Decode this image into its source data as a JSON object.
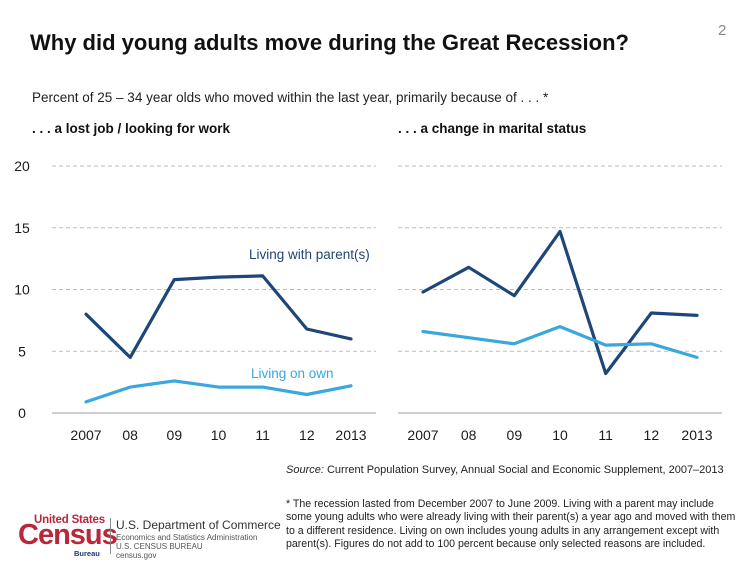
{
  "page_number": "2",
  "title": "Why did young adults move during the Great Recession?",
  "subtitle": "Percent of 25 – 34 year olds who moved within the last year, primarily because of . . . *",
  "source": {
    "label": "Source:",
    "text": "Current Population Survey, Annual Social and Economic Supplement, 2007–2013"
  },
  "footnote": "* The recession lasted from December 2007 to June 2009. Living with a parent may include some young adults who were already living with their parent(s) a year ago and moved with them to a different residence. Living on own includes young adults in any arrangement except with parent(s). Figures do not add to 100 percent because only selected reasons are included.",
  "logo": {
    "united_states": "United States",
    "census": "Census",
    "bureau": "Bureau"
  },
  "department": {
    "name": "U.S. Department of Commerce",
    "line1": "Economics and Statistics Administration",
    "line2": "U.S. CENSUS BUREAU",
    "line3": "census.gov"
  },
  "colors": {
    "parents": "#1f4678",
    "own": "#3aa7de",
    "grid": "#bdbdbd",
    "tick_text": "#1a1a1a"
  },
  "chart_data": [
    {
      "type": "line",
      "title": ". . . a lost job / looking for work",
      "categories": [
        "2007",
        "08",
        "09",
        "10",
        "11",
        "12",
        "2013"
      ],
      "yticks": [
        0,
        5,
        10,
        15,
        20
      ],
      "ylim": [
        0,
        20
      ],
      "grid": true,
      "series": [
        {
          "name": "Living with parent(s)",
          "color": "#1f4678",
          "values": [
            8.0,
            4.5,
            10.8,
            11.0,
            11.1,
            6.8,
            6.0
          ]
        },
        {
          "name": "Living on own",
          "color": "#3aa7de",
          "values": [
            0.9,
            2.1,
            2.6,
            2.1,
            2.1,
            1.5,
            2.2
          ]
        }
      ]
    },
    {
      "type": "line",
      "title": ". . .  a change in marital status",
      "categories": [
        "2007",
        "08",
        "09",
        "10",
        "11",
        "12",
        "2013"
      ],
      "ylim": [
        0,
        20
      ],
      "grid": true,
      "series": [
        {
          "name": "Living with parent(s)",
          "color": "#1f4678",
          "values": [
            9.8,
            11.8,
            9.5,
            14.7,
            3.2,
            8.1,
            7.9
          ]
        },
        {
          "name": "Living on own",
          "color": "#3aa7de",
          "values": [
            6.6,
            6.1,
            5.6,
            7.0,
            5.5,
            5.6,
            4.5
          ]
        }
      ]
    }
  ]
}
